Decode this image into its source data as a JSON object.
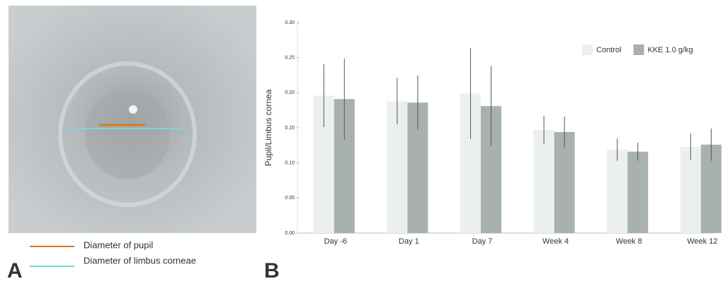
{
  "panel_a": {
    "label": "A",
    "legend": [
      {
        "text": "Diameter of pupil",
        "color": "#e07a1c"
      },
      {
        "text": "Diameter of limbus corneae",
        "color": "#7fd3dc"
      }
    ]
  },
  "chart_data": {
    "type": "bar",
    "panel_label": "B",
    "ylabel": "Pupil/Limbus cornea",
    "categories": [
      "Day -6",
      "Day 1",
      "Day 7",
      "Week 4",
      "Week 8",
      "Week 12"
    ],
    "series": [
      {
        "name": "Control",
        "color": "#eceff0",
        "values": [
          0.196,
          0.188,
          0.199,
          0.147,
          0.119,
          0.123
        ],
        "errors": [
          0.045,
          0.033,
          0.065,
          0.02,
          0.016,
          0.019
        ]
      },
      {
        "name": "KKE 1.0 g/kg",
        "color": "#a9b1b0",
        "values": [
          0.191,
          0.186,
          0.181,
          0.144,
          0.116,
          0.126
        ],
        "errors": [
          0.058,
          0.039,
          0.057,
          0.022,
          0.013,
          0.023
        ]
      }
    ],
    "ylim": [
      0,
      0.3
    ],
    "yticks": [
      {
        "value": 0,
        "label": "0.00"
      },
      {
        "value": 0.05,
        "label": "0.05"
      },
      {
        "value": 0.1,
        "label": "0.10"
      },
      {
        "value": 0.15,
        "label": "0.15"
      },
      {
        "value": 0.2,
        "label": "0.20"
      },
      {
        "value": 0.25,
        "label": "0.25"
      },
      {
        "value": 0.3,
        "label": "0.30"
      }
    ],
    "legend": "top-right"
  }
}
